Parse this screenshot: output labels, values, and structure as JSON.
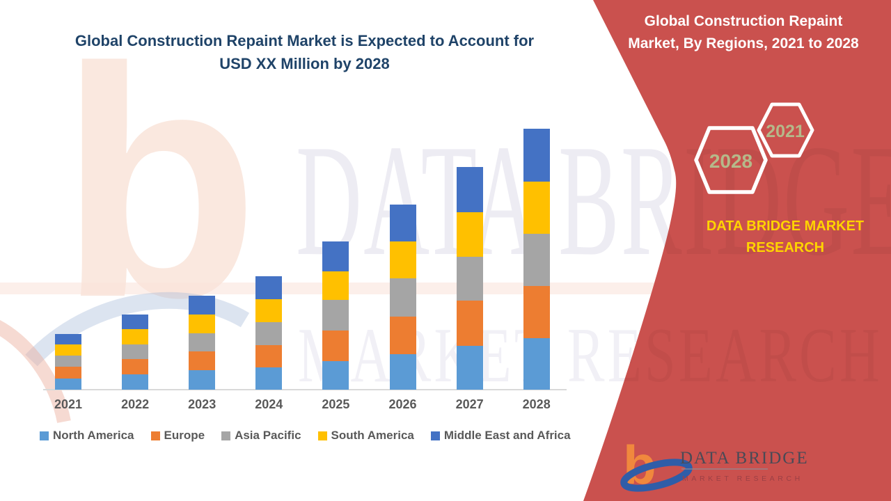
{
  "page": {
    "title_line1": "Global Construction Repaint Market is Expected to Account for",
    "title_line2": "USD XX Million by 2028",
    "title_color": "#1F4368",
    "background_color": "#FFFFFF"
  },
  "right_panel": {
    "panel_color": "#CA514E",
    "title_line1": "Global Construction Repaint",
    "title_line2": "Market, By Regions, 2021 to 2028",
    "title_color": "#FFFFFF",
    "hexagon_small_label": "2021",
    "hexagon_large_label": "2028",
    "hexagon_border_color": "#FFFFFF",
    "hexagon_label_color": "#B5B98A",
    "brand_line1": "DATA BRIDGE MARKET",
    "brand_line2": "RESEARCH",
    "brand_color": "#FFD400"
  },
  "logo": {
    "monogram": "b",
    "monogram_color": "#F0883D",
    "swoosh_color": "#2F5DA8",
    "name": "DATA BRIDGE",
    "name_color": "#494A56",
    "tagline": "MARKET RESEARCH",
    "tagline_color": "#9C4045"
  },
  "watermark": {
    "monogram": "b",
    "line1": "DATA BRIDGE",
    "line2": "MARKET RESEARCH"
  },
  "chart_data": {
    "type": "bar",
    "stacked": true,
    "title": "Global Construction Repaint Market is Expected to Account for USD XX Million by 2028",
    "categories": [
      "2021",
      "2022",
      "2023",
      "2024",
      "2025",
      "2026",
      "2027",
      "2028"
    ],
    "series": [
      {
        "name": "North America",
        "color": "#5B9BD5",
        "values": [
          16,
          22,
          28,
          32,
          41,
          51,
          63,
          74
        ]
      },
      {
        "name": "Europe",
        "color": "#ED7D31",
        "values": [
          17,
          22,
          27,
          32,
          44,
          54,
          65,
          75
        ]
      },
      {
        "name": "Asia Pacific",
        "color": "#A5A5A5",
        "values": [
          16,
          21,
          26,
          33,
          44,
          55,
          63,
          75
        ]
      },
      {
        "name": "South America",
        "color": "#FFC000",
        "values": [
          16,
          22,
          27,
          33,
          41,
          53,
          64,
          75
        ]
      },
      {
        "name": "Middle East and Africa",
        "color": "#4472C4",
        "values": [
          15,
          21,
          27,
          33,
          43,
          53,
          65,
          76
        ]
      }
    ],
    "stack_order_bottom_to_top": [
      "North America",
      "Europe",
      "Asia Pacific",
      "South America",
      "Middle East and Africa"
    ],
    "xlabel": "",
    "ylabel": "",
    "y_axis_visible": false,
    "value_note": "No numeric axis shown (values reported as USD XX Million); series values are relative heights estimated from the bars",
    "grid": false,
    "legend_position": "bottom",
    "axis_label_color": "#595959",
    "axis_line_color": "#D9D9D9"
  }
}
